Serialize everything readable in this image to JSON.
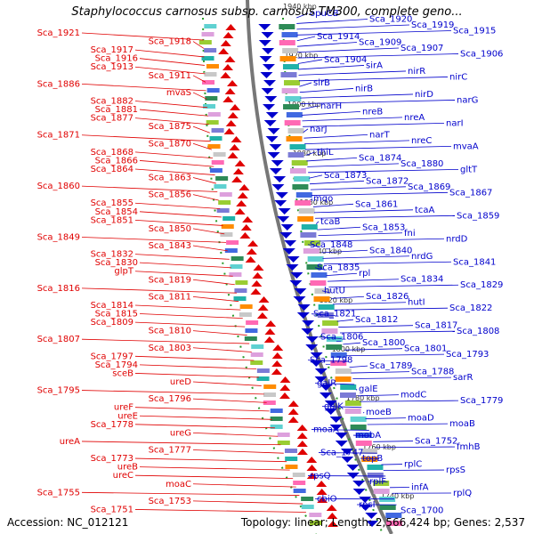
{
  "title": "Staphylococcus carnosus subsp. carnosus TM300, complete geno...",
  "accession": "Accession: NC_012121",
  "topology": "Topology: linear; Length: 2,566,424 bp; Genes: 2,537",
  "colors": {
    "forward": "#e00000",
    "reverse": "#0000cc",
    "backbone": "#888888"
  },
  "kbp_labels": [
    {
      "label": "1940 kbp",
      "row": 0
    },
    {
      "label": "1920 kbp",
      "row": 1
    },
    {
      "label": "1900 kbp",
      "row": 2
    },
    {
      "label": "1880 kbp",
      "row": 3
    },
    {
      "label": "1860 kbp",
      "row": 4
    },
    {
      "label": "1840 kbp",
      "row": 5
    },
    {
      "label": "1820 kbp",
      "row": 6
    },
    {
      "label": "1800 kbp",
      "row": 7
    },
    {
      "label": "1780 kbp",
      "row": 8
    },
    {
      "label": "1760 kbp",
      "row": 9
    },
    {
      "label": "1740 kbp",
      "row": 10
    }
  ],
  "forward_genes": [
    "Sca_1921",
    "Sca_1918",
    "Sca_1917",
    "Sca_1916",
    "Sca_1913",
    "Sca_1911",
    "Sca_1886",
    "mvaS",
    "Sca_1882",
    "Sca_1881",
    "Sca_1877",
    "Sca_1875",
    "Sca_1871",
    "Sca_1870",
    "Sca_1868",
    "Sca_1866",
    "Sca_1864",
    "Sca_1863",
    "Sca_1860",
    "Sca_1856",
    "Sca_1855",
    "Sca_1854",
    "Sca_1851",
    "Sca_1850",
    "Sca_1849",
    "Sca_1843",
    "Sca_1832",
    "Sca_1830",
    "glpT",
    "Sca_1819",
    "Sca_1816",
    "Sca_1811",
    "Sca_1814",
    "Sca_1815",
    "Sca_1809",
    "Sca_1810",
    "Sca_1807",
    "Sca_1803",
    "Sca_1797",
    "Sca_1794",
    "sceB",
    "ureD",
    "Sca_1795",
    "Sca_1796",
    "ureF",
    "ureE",
    "Sca_1778",
    "ureG",
    "ureA",
    "Sca_1777",
    "Sca_1773",
    "ureB",
    "ureC",
    "moaC",
    "Sca_1755",
    "Sca_1753",
    "Sca_1751"
  ],
  "reverse_genes": [
    "opuCB",
    "Sca_1920",
    "Sca_1919",
    "Sca_1915",
    "Sca_1914",
    "Sca_1909",
    "Sca_1907",
    "Sca_1906",
    "Sca_1904",
    "sirA",
    "nirR",
    "nirC",
    "sirB",
    "nirB",
    "nirD",
    "narG",
    "narH",
    "nreB",
    "nreA",
    "narI",
    "narJ",
    "narT",
    "nreC",
    "mvaA",
    "thiL",
    "Sca_1874",
    "Sca_1880",
    "gltT",
    "Sca_1873",
    "Sca_1872",
    "Sca_1869",
    "Sca_1867",
    "mqo",
    "Sca_1861",
    "tcaA",
    "Sca_1859",
    "tcaB",
    "Sca_1853",
    "fni",
    "nrdD",
    "Sca_1848",
    "Sca_1840",
    "nrdG",
    "Sca_1841",
    "Sca_1835",
    "rpl",
    "Sca_1834",
    "Sca_1829",
    "hutU",
    "Sca_1826",
    "hutI",
    "Sca_1822",
    "Sca_1821",
    "Sca_1812",
    "Sca_1817",
    "Sca_1808",
    "Sca_1806",
    "Sca_1800",
    "Sca_1801",
    "Sca_1793",
    "Sca_1798",
    "Sca_1789",
    "Sca_1788",
    "sarR",
    "galR",
    "galE",
    "modC",
    "Sca_1779",
    "galK",
    "moeB",
    "moaD",
    "moaB",
    "moaA",
    "mobA",
    "Sca_1752",
    "fmhB",
    "Sca_1747",
    "topB",
    "rplC",
    "rpsS",
    "rpsQ",
    "rplF",
    "infA",
    "rplQ",
    "cbiO",
    "rpsI",
    "Sca_1700"
  ]
}
